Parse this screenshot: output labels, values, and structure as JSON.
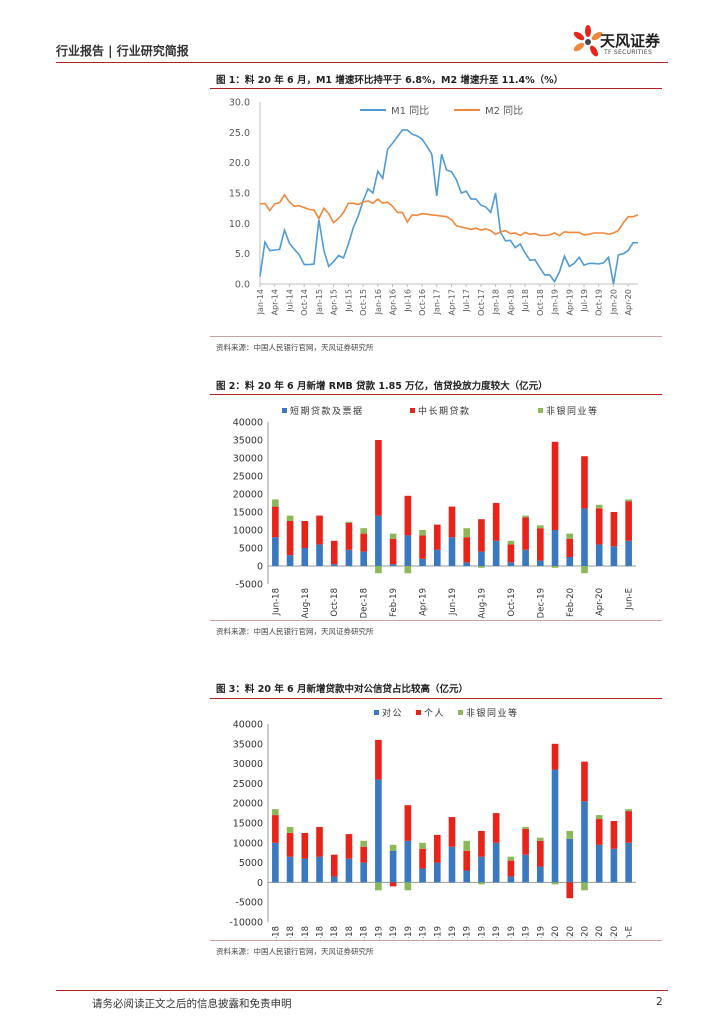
{
  "header": {
    "title": "行业报告 | 行业研究简报"
  },
  "logo": {
    "name": "天风证券",
    "sub": "TF SECURITIES"
  },
  "colors": {
    "accent": "#b22222",
    "m1": "#4f9bd6",
    "m2": "#f0873c",
    "short": "#3a78c0",
    "long": "#e8231a",
    "nonbank": "#8db85a"
  },
  "figures": [
    {
      "title": "图 1：料 20 年 6 月，M1 增速环比持平于 6.8%，M2 增速升至 11.4%（%）",
      "source": "资料来源：中国人民银行官网，天风证券研究所"
    },
    {
      "title": "图 2：料 20 年 6 月新增 RMB 贷款 1.85 万亿，信贷投放力度较大（亿元）",
      "source": "资料来源：中国人民银行官网，天风证券研究所"
    },
    {
      "title": "图 3：料 20 年 6 月新增贷款中对公信贷占比较高（亿元）",
      "source": "资料来源：中国人民银行官网，天风证券研究所"
    }
  ],
  "footer": {
    "disclaimer": "请务必阅读正文之后的信息披露和免责申明",
    "page": "2"
  },
  "chart_data": [
    {
      "type": "line",
      "title": "M1 同比 / M2 同比",
      "ylim": [
        0,
        30
      ],
      "yticks": [
        "0.0",
        "5.0",
        "10.0",
        "15.0",
        "20.0",
        "25.0",
        "30.0"
      ],
      "xticks": [
        "Jan-14",
        "Apr-14",
        "Jul-14",
        "Oct-14",
        "Jan-15",
        "Apr-15",
        "Jul-15",
        "Oct-15",
        "Jan-16",
        "Apr-16",
        "Jul-16",
        "Oct-16",
        "Jan-17",
        "Apr-17",
        "Jul-17",
        "Oct-17",
        "Jan-18",
        "Apr-18",
        "Jul-18",
        "Oct-18",
        "Jan-19",
        "Apr-19",
        "Jul-19",
        "Oct-19",
        "Jan-20",
        "Apr-20"
      ],
      "series": [
        {
          "name": "M1 同比",
          "values": [
            1.2,
            6.9,
            5.5,
            5.6,
            5.7,
            8.9,
            6.7,
            5.7,
            4.8,
            3.2,
            3.2,
            3.3,
            10.6,
            5.6,
            2.9,
            3.7,
            4.7,
            4.3,
            6.6,
            9.3,
            11.2,
            13.7,
            15.7,
            15.0,
            18.6,
            17.4,
            22.2,
            23.2,
            24.3,
            25.4,
            25.4,
            24.7,
            24.4,
            23.9,
            22.7,
            21.4,
            14.5,
            21.4,
            18.8,
            18.5,
            17.2,
            15.0,
            15.3,
            14.0,
            14.0,
            13.0,
            12.7,
            11.8,
            15.0,
            8.5,
            7.1,
            7.2,
            6.0,
            6.6,
            5.1,
            3.9,
            4.0,
            2.7,
            1.5,
            1.5,
            0.4,
            2.0,
            4.6,
            2.9,
            3.4,
            4.4,
            3.1,
            3.4,
            3.4,
            3.3,
            3.5,
            4.4,
            0.0,
            4.8,
            5.0,
            5.5,
            6.8,
            6.8
          ]
        },
        {
          "name": "M2 同比",
          "values": [
            13.2,
            13.3,
            12.1,
            13.2,
            13.4,
            14.7,
            13.5,
            12.8,
            12.9,
            12.6,
            12.3,
            12.2,
            10.8,
            12.5,
            11.6,
            10.1,
            10.8,
            11.8,
            13.3,
            13.3,
            13.1,
            13.5,
            13.7,
            13.3,
            14.0,
            13.3,
            13.5,
            12.8,
            11.8,
            11.8,
            10.2,
            11.4,
            11.3,
            11.6,
            11.5,
            11.4,
            11.3,
            11.2,
            11.1,
            10.6,
            9.6,
            9.4,
            9.2,
            9.0,
            9.2,
            8.9,
            9.1,
            8.8,
            8.2,
            8.6,
            8.8,
            8.3,
            8.4,
            8.0,
            8.5,
            8.2,
            8.3,
            8.0,
            8.0,
            8.1,
            8.4,
            8.0,
            8.6,
            8.5,
            8.5,
            8.5,
            8.1,
            8.2,
            8.4,
            8.4,
            8.4,
            8.2,
            8.4,
            8.8,
            10.1,
            11.1,
            11.1,
            11.4
          ]
        }
      ]
    },
    {
      "type": "bar",
      "stacked": true,
      "ylim": [
        -5000,
        40000
      ],
      "yticks": [
        "-5000",
        "0",
        "5000",
        "10000",
        "15000",
        "20000",
        "25000",
        "30000",
        "35000",
        "40000"
      ],
      "categories": [
        "Jun-18",
        "Jul-18",
        "Aug-18",
        "Sep-18",
        "Oct-18",
        "Nov-18",
        "Dec-18",
        "Jan-19",
        "Feb-19",
        "Mar-19",
        "Apr-19",
        "May-19",
        "Jun-19",
        "Jul-19",
        "Aug-19",
        "Sep-19",
        "Oct-19",
        "Nov-19",
        "Dec-19",
        "Jan-20",
        "Feb-20",
        "Mar-20",
        "Apr-20",
        "May-20",
        "Jun-E"
      ],
      "xticks": [
        "Jun-18",
        "Aug-18",
        "Oct-18",
        "Dec-18",
        "Feb-19",
        "Apr-19",
        "Jun-19",
        "Aug-19",
        "Oct-19",
        "Dec-19",
        "Feb-20",
        "Apr-20",
        "Jun-E"
      ],
      "series": [
        {
          "name": "短期贷款及票据",
          "values": [
            8000,
            3000,
            5000,
            6000,
            500,
            4500,
            4000,
            14000,
            500,
            8500,
            2000,
            4500,
            8000,
            1000,
            4000,
            7000,
            1000,
            4500,
            1500,
            10000,
            2500,
            16000,
            6000,
            5500,
            7000
          ]
        },
        {
          "name": "中长期贷款",
          "values": [
            8500,
            9500,
            7500,
            8000,
            6500,
            7500,
            5000,
            21000,
            7000,
            11000,
            6500,
            7000,
            8500,
            7000,
            9000,
            10500,
            5000,
            9000,
            9000,
            24500,
            5000,
            14500,
            10000,
            9500,
            11000
          ]
        },
        {
          "name": "非银同业等",
          "values": [
            2000,
            1500,
            0,
            0,
            0,
            300,
            1500,
            -2000,
            1500,
            -2000,
            1500,
            0,
            0,
            2500,
            -500,
            0,
            1000,
            500,
            800,
            -500,
            1500,
            -2000,
            1000,
            0,
            500
          ]
        }
      ]
    },
    {
      "type": "bar",
      "stacked": true,
      "ylim": [
        -10000,
        40000
      ],
      "yticks": [
        "-10000",
        "-5000",
        "0",
        "5000",
        "10000",
        "15000",
        "20000",
        "25000",
        "30000",
        "35000",
        "40000"
      ],
      "categories": [
        "Jun-18",
        "Jul-18",
        "Aug-18",
        "Sep-18",
        "Oct-18",
        "Nov-18",
        "Dec-18",
        "Jan-19",
        "Feb-19",
        "Mar-19",
        "Apr-19",
        "May-19",
        "Jun-19",
        "Jul-19",
        "Aug-19",
        "Sep-19",
        "Oct-19",
        "Nov-19",
        "Dec-19",
        "Jan-20",
        "Feb-20",
        "Mar-20",
        "Apr-20",
        "May-20",
        "Jun-E"
      ],
      "xticks": [
        "Jun-18",
        "Jul-18",
        "Aug-18",
        "Sep-18",
        "Oct-18",
        "Nov-18",
        "Dec-18",
        "Jan-19",
        "Feb-19",
        "Mar-19",
        "Apr-19",
        "May-19",
        "Jun-19",
        "Jul-19",
        "Aug-19",
        "Sep-19",
        "Oct-19",
        "Nov-19",
        "Dec-19",
        "Jan-20",
        "Feb-20",
        "Mar-20",
        "Apr-20",
        "May-20",
        "Jun-E"
      ],
      "series": [
        {
          "name": "对公",
          "values": [
            10000,
            6500,
            6000,
            6500,
            1500,
            6000,
            5000,
            26000,
            8000,
            10500,
            3500,
            5000,
            9000,
            3000,
            6500,
            10000,
            1500,
            7000,
            4000,
            28500,
            11000,
            20500,
            9500,
            8500,
            10000
          ]
        },
        {
          "name": "个人",
          "values": [
            7000,
            6000,
            6500,
            7500,
            5500,
            6200,
            4000,
            10000,
            -1000,
            9000,
            5000,
            7000,
            7500,
            5000,
            6500,
            7500,
            4000,
            6500,
            6500,
            6500,
            -4000,
            10000,
            6500,
            7000,
            8000
          ]
        },
        {
          "name": "非银同业等",
          "values": [
            1500,
            1500,
            0,
            0,
            0,
            0,
            1500,
            -2000,
            1500,
            -2000,
            1500,
            0,
            0,
            2500,
            -500,
            0,
            1000,
            500,
            800,
            -500,
            2000,
            -2000,
            1000,
            0,
            500
          ]
        }
      ]
    }
  ]
}
